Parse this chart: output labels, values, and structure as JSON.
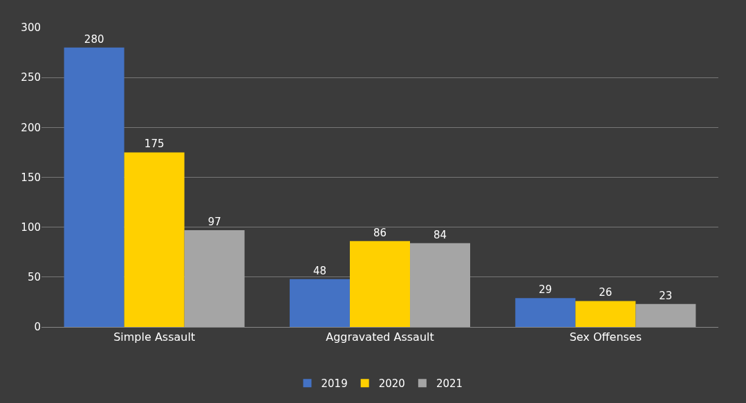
{
  "chart_data": {
    "type": "bar",
    "categories": [
      "Simple Assault",
      "Aggravated Assault",
      "Sex Offenses"
    ],
    "series": [
      {
        "name": "2019",
        "color": "#4472c4",
        "values": [
          280,
          48,
          29
        ]
      },
      {
        "name": "2020",
        "color": "#ffd000",
        "values": [
          175,
          86,
          26
        ]
      },
      {
        "name": "2021",
        "color": "#a5a5a5",
        "values": [
          97,
          84,
          23
        ]
      }
    ],
    "ylim": [
      0,
      300
    ],
    "yticks": [
      0,
      50,
      100,
      150,
      200,
      250,
      300
    ],
    "grid": "y",
    "legend": "bottom",
    "data_labels": true
  }
}
